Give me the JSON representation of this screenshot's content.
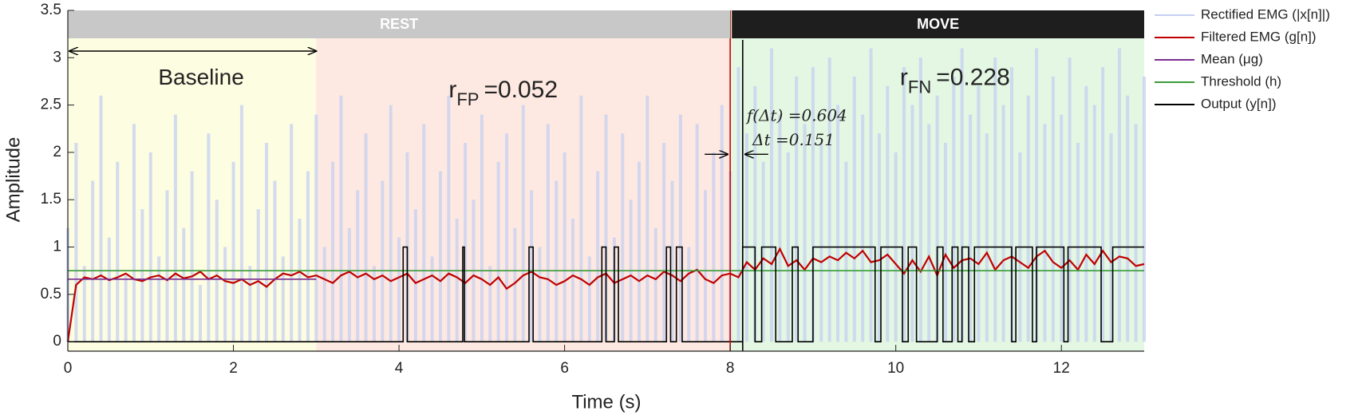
{
  "chart_data": {
    "type": "line",
    "xlabel": "Time (s)",
    "ylabel": "Amplitude",
    "xlim": [
      0,
      13
    ],
    "xticks": [
      0,
      2,
      4,
      6,
      8,
      10,
      12
    ],
    "ylim": [
      -0.1,
      3.5
    ],
    "yticks": [
      0,
      0.5,
      1,
      1.5,
      2,
      2.5,
      3,
      3.5
    ],
    "regions": [
      {
        "x": [
          0,
          3
        ],
        "color": "#fdfde2"
      },
      {
        "x": [
          3,
          8
        ],
        "color": "#fde9e1"
      },
      {
        "x": [
          8,
          13
        ],
        "color": "#e3f7e3"
      }
    ],
    "bands": [
      {
        "label": "REST",
        "x": [
          0,
          8
        ],
        "color": "#c8c8c8"
      },
      {
        "label": "MOVE",
        "x": [
          8.02,
          13
        ],
        "color": "#1e1e1e"
      }
    ],
    "annotations": {
      "baseline": "Baseline",
      "r_fp": {
        "symbol": "r",
        "subscript": "FP",
        "value_text": "=0.052"
      },
      "r_fn": {
        "symbol": "r",
        "subscript": "FN",
        "value_text": "=0.228"
      },
      "f_delta_t": "f(Δt) =0.604",
      "delta_t": "Δt =0.151",
      "movement_onset": 8,
      "detection_time": 8.151
    },
    "x": [
      0,
      0.1,
      0.2,
      0.3,
      0.4,
      0.5,
      0.6,
      0.7,
      0.8,
      0.9,
      1,
      1.1,
      1.2,
      1.3,
      1.4,
      1.5,
      1.6,
      1.7,
      1.8,
      1.9,
      2,
      2.1,
      2.2,
      2.3,
      2.4,
      2.5,
      2.6,
      2.7,
      2.8,
      2.9,
      3,
      3.1,
      3.2,
      3.3,
      3.4,
      3.5,
      3.6,
      3.7,
      3.8,
      3.9,
      4,
      4.1,
      4.2,
      4.3,
      4.4,
      4.5,
      4.6,
      4.7,
      4.8,
      4.9,
      5,
      5.1,
      5.2,
      5.3,
      5.4,
      5.5,
      5.6,
      5.7,
      5.8,
      5.9,
      6,
      6.1,
      6.2,
      6.3,
      6.4,
      6.5,
      6.6,
      6.7,
      6.8,
      6.9,
      7,
      7.1,
      7.2,
      7.3,
      7.4,
      7.5,
      7.6,
      7.7,
      7.8,
      7.9,
      8,
      8.1,
      8.2,
      8.3,
      8.4,
      8.5,
      8.6,
      8.7,
      8.8,
      8.9,
      9,
      9.1,
      9.2,
      9.3,
      9.4,
      9.5,
      9.6,
      9.7,
      9.8,
      9.9,
      10,
      10.1,
      10.2,
      10.3,
      10.4,
      10.5,
      10.6,
      10.7,
      10.8,
      10.9,
      11,
      11.1,
      11.2,
      11.3,
      11.4,
      11.5,
      11.6,
      11.7,
      11.8,
      11.9,
      12,
      12.1,
      12.2,
      12.3,
      12.4,
      12.5,
      12.6,
      12.7,
      12.8,
      12.9,
      13
    ],
    "series": [
      {
        "name": "Rectified EMG (|x[n]|)",
        "color": "#c5cff0",
        "style": "spikes",
        "values": [
          1.2,
          2.1,
          0.8,
          1.7,
          2.6,
          1.1,
          1.9,
          0.7,
          2.3,
          1.4,
          2.0,
          0.9,
          1.6,
          2.4,
          1.2,
          1.8,
          0.6,
          2.2,
          1.5,
          1.0,
          1.9,
          2.5,
          0.8,
          1.4,
          2.1,
          1.7,
          0.9,
          2.3,
          1.3,
          1.8,
          2.4,
          1.0,
          1.9,
          2.6,
          1.2,
          1.6,
          2.2,
          0.8,
          1.7,
          2.5,
          1.1,
          2.0,
          1.4,
          2.3,
          0.9,
          1.8,
          2.6,
          1.3,
          2.1,
          1.5,
          2.4,
          0.8,
          1.9,
          2.2,
          1.2,
          2.5,
          1.6,
          1.0,
          2.3,
          1.7,
          2.0,
          1.3,
          2.6,
          0.9,
          1.8,
          2.4,
          1.1,
          2.2,
          1.5,
          1.9,
          2.6,
          1.2,
          2.1,
          1.7,
          2.4,
          1.0,
          2.3,
          1.6,
          2.0,
          2.5,
          1.8,
          2.9,
          2.2,
          2.7,
          1.9,
          3.1,
          2.4,
          2.0,
          2.8,
          2.3,
          2.9,
          2.1,
          3.0,
          2.5,
          1.9,
          2.8,
          2.4,
          3.1,
          2.2,
          2.7,
          2.0,
          2.9,
          2.5,
          3.0,
          2.3,
          2.6,
          2.1,
          2.8,
          3.1,
          2.4,
          2.7,
          2.2,
          3.0,
          2.5,
          2.9,
          2.0,
          2.6,
          3.1,
          2.3,
          2.8,
          2.4,
          3.0,
          2.1,
          2.7,
          2.5,
          2.9,
          2.2,
          3.1,
          2.6,
          2.3,
          2.8
        ]
      },
      {
        "name": "Filtered EMG (g[n])",
        "color": "#c00000",
        "style": "line",
        "values": [
          0,
          0.6,
          0.68,
          0.66,
          0.7,
          0.65,
          0.68,
          0.72,
          0.66,
          0.64,
          0.68,
          0.7,
          0.65,
          0.72,
          0.67,
          0.69,
          0.74,
          0.66,
          0.7,
          0.64,
          0.62,
          0.66,
          0.6,
          0.64,
          0.58,
          0.66,
          0.72,
          0.7,
          0.74,
          0.68,
          0.7,
          0.66,
          0.62,
          0.7,
          0.74,
          0.68,
          0.72,
          0.66,
          0.7,
          0.64,
          0.68,
          0.72,
          0.62,
          0.66,
          0.7,
          0.64,
          0.72,
          0.68,
          0.62,
          0.7,
          0.66,
          0.6,
          0.68,
          0.56,
          0.62,
          0.7,
          0.74,
          0.68,
          0.66,
          0.6,
          0.64,
          0.7,
          0.66,
          0.6,
          0.68,
          0.72,
          0.62,
          0.66,
          0.7,
          0.64,
          0.7,
          0.66,
          0.74,
          0.7,
          0.64,
          0.72,
          0.76,
          0.66,
          0.62,
          0.7,
          0.72,
          0.68,
          0.84,
          0.76,
          0.88,
          0.82,
          0.98,
          0.8,
          0.86,
          0.76,
          0.88,
          0.84,
          0.9,
          0.86,
          0.94,
          0.88,
          0.96,
          0.84,
          0.86,
          0.92,
          0.82,
          0.72,
          0.86,
          0.74,
          0.9,
          0.7,
          0.92,
          0.78,
          0.86,
          0.88,
          0.82,
          0.94,
          0.76,
          0.86,
          0.9,
          0.84,
          0.78,
          0.9,
          0.96,
          0.84,
          0.78,
          0.86,
          0.76,
          0.92,
          0.82,
          0.96,
          0.84,
          0.9,
          0.88,
          0.8,
          0.82
        ]
      },
      {
        "name": "Mean (μg)",
        "color": "#7b2f8e",
        "style": "line",
        "x": [
          0,
          3
        ],
        "values": [
          0.66,
          0.66
        ]
      },
      {
        "name": "Threshold (h)",
        "color": "#3a9a3a",
        "style": "line",
        "x": [
          0,
          13
        ],
        "values": [
          0.75,
          0.75
        ]
      },
      {
        "name": "Output (y[n])",
        "color": "#000000",
        "style": "line",
        "x": [
          0,
          4.05,
          4.05,
          4.1,
          4.1,
          4.77,
          4.77,
          4.79,
          4.79,
          5.57,
          5.57,
          5.62,
          5.62,
          6.45,
          6.45,
          6.5,
          6.5,
          6.6,
          6.6,
          6.65,
          6.65,
          7.23,
          7.23,
          7.28,
          7.28,
          7.35,
          7.35,
          7.42,
          7.42,
          8.15,
          8.15,
          8.3,
          8.3,
          8.38,
          8.38,
          8.55,
          8.55,
          8.75,
          8.75,
          8.82,
          8.82,
          9.0,
          9.0,
          9.75,
          9.75,
          9.82,
          9.82,
          10.08,
          10.08,
          10.15,
          10.15,
          10.25,
          10.25,
          10.5,
          10.5,
          10.57,
          10.57,
          10.68,
          10.68,
          10.75,
          10.75,
          10.8,
          10.8,
          10.88,
          10.88,
          10.95,
          10.95,
          11.4,
          11.4,
          11.45,
          11.45,
          11.65,
          11.65,
          11.7,
          11.7,
          12.03,
          12.03,
          12.08,
          12.08,
          12.48,
          12.48,
          12.62,
          12.62,
          13
        ],
        "values": [
          0,
          0,
          1,
          1,
          0,
          0,
          1,
          1,
          0,
          0,
          1,
          1,
          0,
          0,
          1,
          1,
          0,
          0,
          1,
          1,
          0,
          0,
          1,
          1,
          0,
          0,
          1,
          1,
          0,
          0,
          1,
          1,
          0,
          0,
          1,
          1,
          0,
          0,
          1,
          1,
          0,
          0,
          1,
          1,
          0,
          0,
          1,
          1,
          0,
          0,
          1,
          1,
          0,
          0,
          1,
          1,
          0,
          0,
          1,
          1,
          0,
          0,
          1,
          1,
          0,
          0,
          1,
          1,
          0,
          0,
          1,
          1,
          0,
          0,
          1,
          1,
          0,
          0,
          1,
          1,
          0,
          0,
          1,
          1
        ]
      }
    ]
  }
}
